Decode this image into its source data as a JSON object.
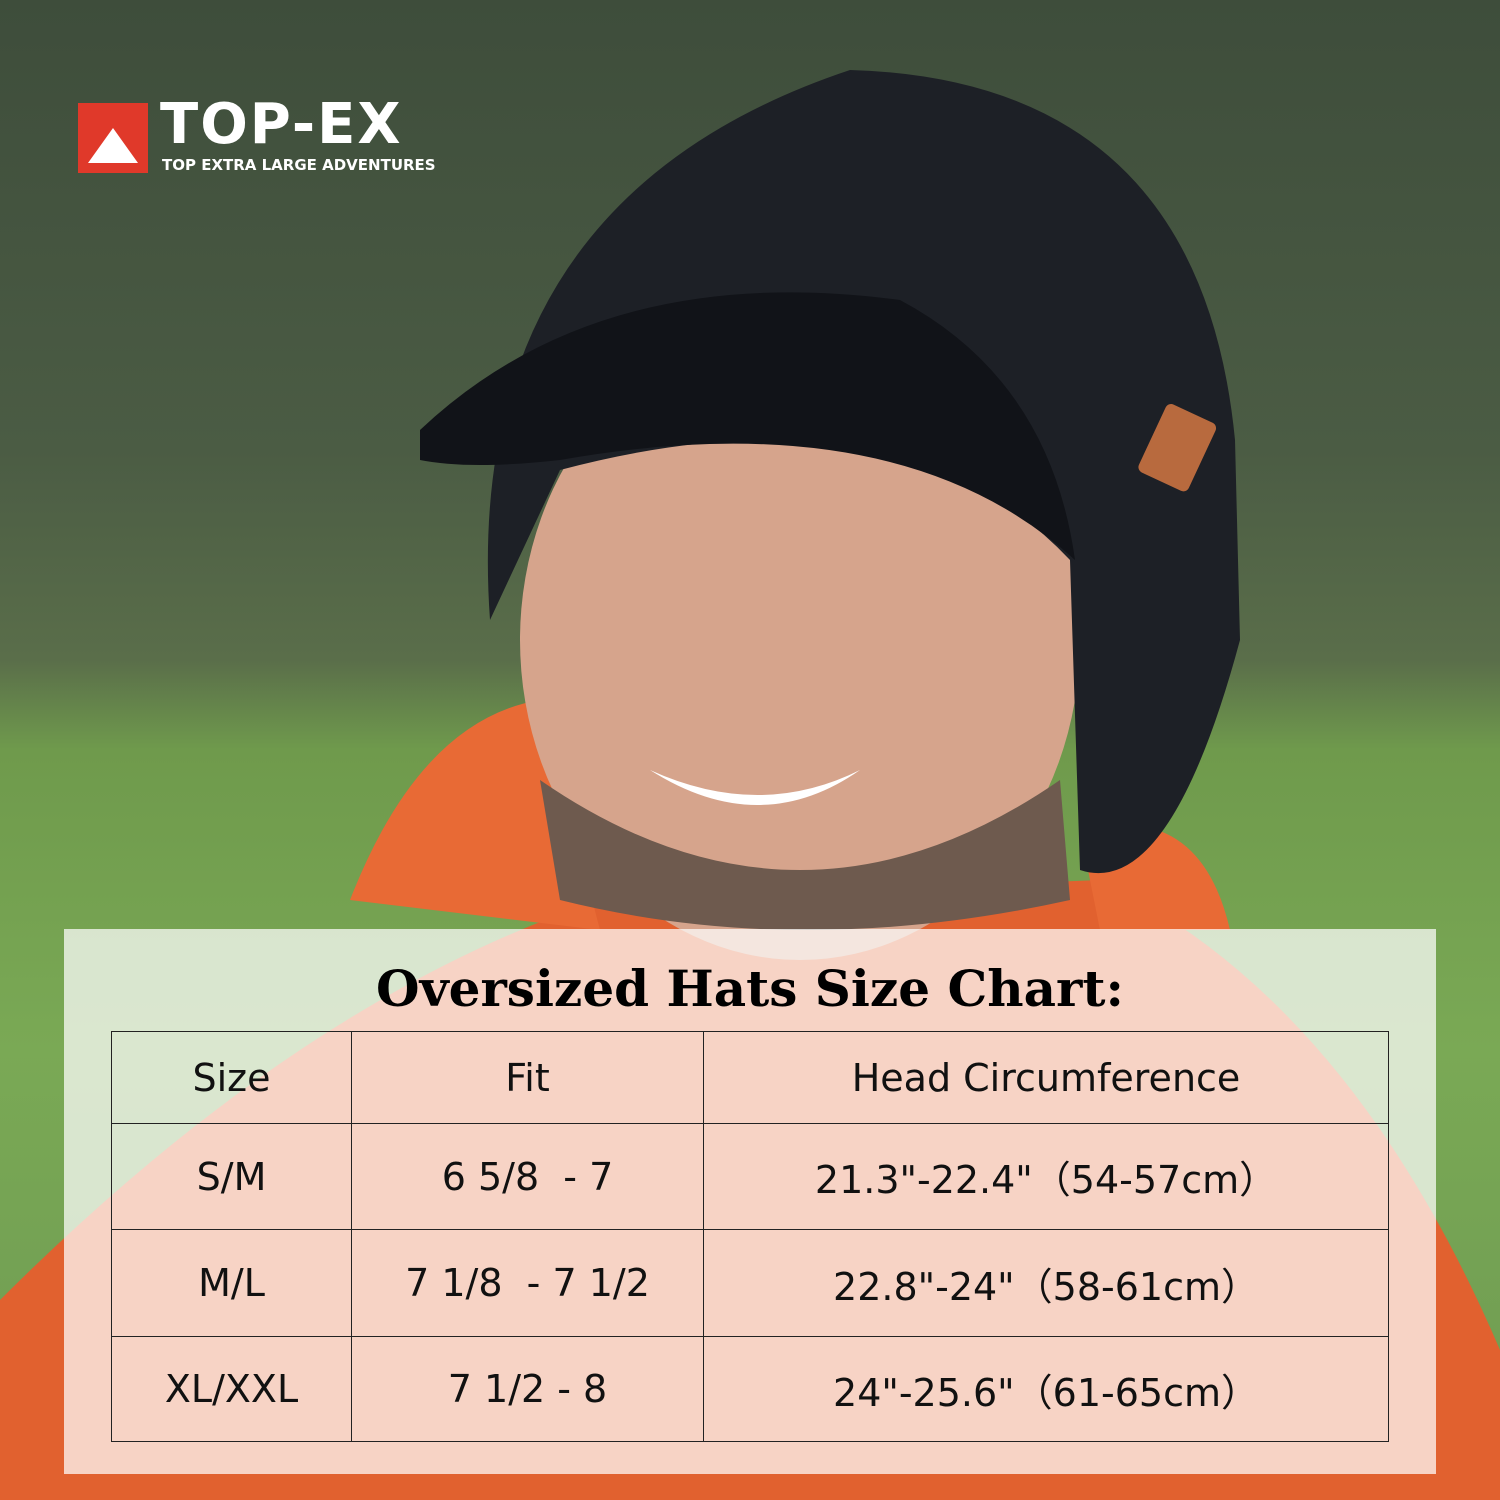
{
  "logo": {
    "brand": "TOP-EX",
    "tagline": "TOP EXTRA LARGE ADVENTURES"
  },
  "table": {
    "title": "Oversized Hats Size Chart:",
    "header": [
      "Size",
      "Fit",
      "Head Circumference"
    ],
    "rows": [
      [
        "S/M",
        "6 5/8  - 7",
        "21.3\"-22.4\"（54-57cm）"
      ],
      [
        "M/L",
        "7 1/8  - 7 1/2",
        "22.8\"-24\"（58-61cm）"
      ],
      [
        "XL/XXL",
        "7 1/2 - 8",
        "24\"-25.6\"（61-65cm）"
      ]
    ]
  }
}
